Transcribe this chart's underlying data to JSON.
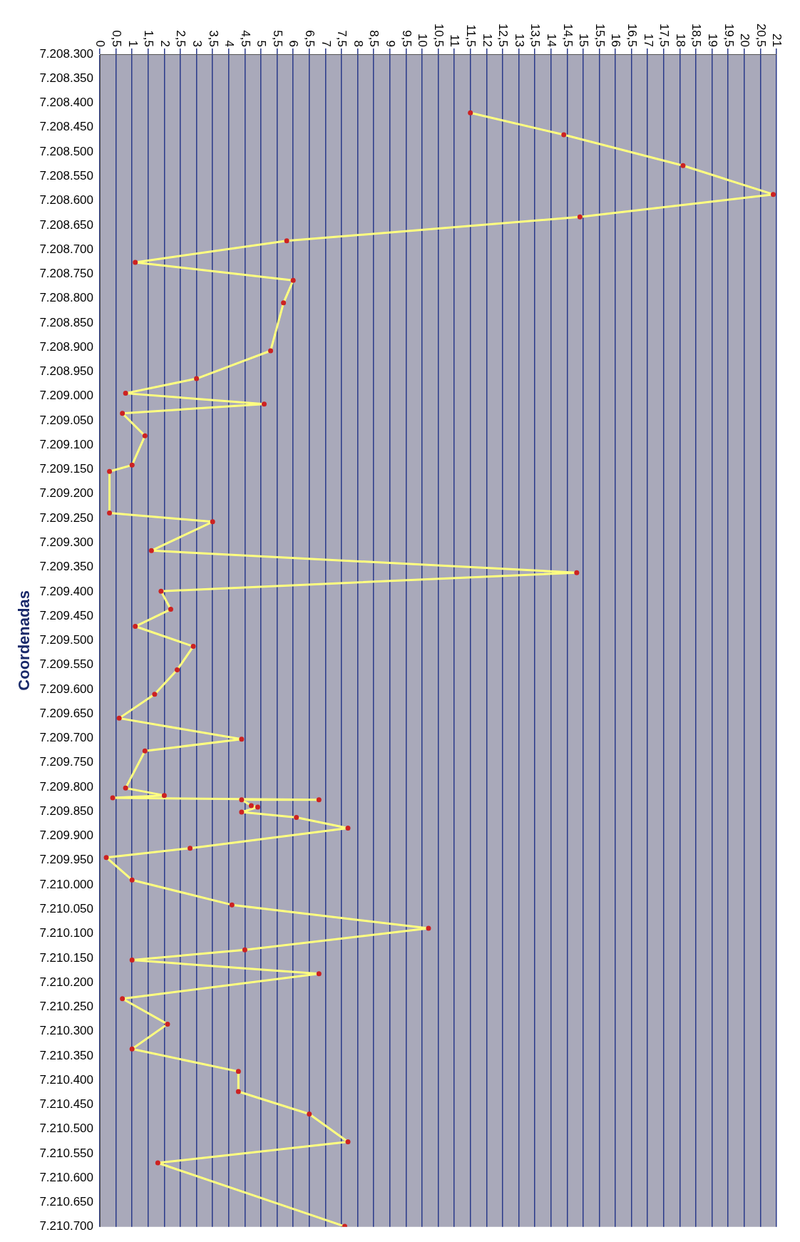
{
  "chart_data": {
    "type": "line",
    "orientation": "horizontal",
    "ylabel": "Coordenadas",
    "x": [
      7208420,
      7208465,
      7208528,
      7208587,
      7208633,
      7208682,
      7208726,
      7208763,
      7208809,
      7208907,
      7208964,
      7208994,
      7209016,
      7209035,
      7209081,
      7209141,
      7209154,
      7209239,
      7209257,
      7209316,
      7209361,
      7209399,
      7209436,
      7209471,
      7209512,
      7209560,
      7209610,
      7209659,
      7209702,
      7209726,
      7209802,
      7209817,
      7209822,
      7209826,
      7209826,
      7209838,
      7209841,
      7209851,
      7209862,
      7209884,
      7209925,
      7209944,
      7209990,
      7210041,
      7210089,
      7210133,
      7210154,
      7210182,
      7210233,
      7210285,
      7210336,
      7210382,
      7210423,
      7210469,
      7210526,
      7210569,
      7210699
    ],
    "series": [
      {
        "color": "#ffff80",
        "marker": "none",
        "values": [
          11.5,
          14.4,
          18.1,
          20.9,
          14.9,
          5.8,
          1.1,
          6.0,
          5.7,
          5.3,
          3.0,
          0.8,
          5.1,
          0.7,
          1.4,
          1.0,
          0.3,
          0.3,
          3.5,
          1.6,
          14.8,
          1.9,
          2.2,
          1.1,
          2.9,
          2.4,
          1.7,
          0.6,
          4.4,
          1.4,
          0.8,
          2.0,
          0.4,
          6.8,
          4.4,
          4.7,
          4.9,
          4.4,
          6.1,
          7.7,
          2.8,
          0.2,
          1.0,
          4.1,
          10.2,
          4.5,
          1.0,
          6.8,
          0.7,
          2.1,
          1.0,
          4.3,
          4.3,
          6.5,
          7.7,
          1.8,
          7.6
        ]
      },
      {
        "type": "scatter",
        "color": "#cc2222",
        "marker": "circle",
        "values": [
          11.5,
          14.4,
          18.1,
          20.9,
          14.9,
          5.8,
          1.1,
          6.0,
          5.7,
          5.3,
          3.0,
          0.8,
          5.1,
          0.7,
          1.4,
          1.0,
          0.3,
          0.3,
          3.5,
          1.6,
          14.8,
          1.9,
          2.2,
          1.1,
          2.9,
          2.4,
          1.7,
          0.6,
          4.4,
          1.4,
          0.8,
          2.0,
          0.4,
          6.8,
          4.4,
          4.7,
          4.9,
          4.4,
          6.1,
          7.7,
          2.8,
          0.2,
          1.0,
          4.1,
          10.2,
          4.5,
          1.0,
          6.8,
          0.7,
          2.1,
          1.0,
          4.3,
          4.3,
          6.5,
          7.7,
          1.8,
          7.6
        ]
      }
    ],
    "line_style": "solid",
    "grid": "x",
    "legend": false,
    "xlim": [
      0,
      21
    ],
    "xticks": [
      0,
      {
        "value": 0.5,
        "label": "0,5"
      },
      1,
      {
        "value": 1.5,
        "label": "1,5"
      },
      2,
      {
        "value": 2.5,
        "label": "2,5"
      },
      3,
      {
        "value": 3.5,
        "label": "3,5"
      },
      4,
      {
        "value": 4.5,
        "label": "4,5"
      },
      5,
      {
        "value": 5.5,
        "label": "5,5"
      },
      6,
      {
        "value": 6.5,
        "label": "6,5"
      },
      7,
      {
        "value": 7.5,
        "label": "7,5"
      },
      8,
      {
        "value": 8.5,
        "label": "8,5"
      },
      9,
      {
        "value": 9.5,
        "label": "9,5"
      },
      10,
      {
        "value": 10.5,
        "label": "10,5"
      },
      11,
      {
        "value": 11.5,
        "label": "11,5"
      },
      12,
      {
        "value": 12.5,
        "label": "12,5"
      },
      13,
      {
        "value": 13.5,
        "label": "13,5"
      },
      14,
      {
        "value": 14.5,
        "label": "14,5"
      },
      15,
      {
        "value": 15.5,
        "label": "15,5"
      },
      16,
      {
        "value": 16.5,
        "label": "16,5"
      },
      17,
      {
        "value": 17.5,
        "label": "17,5"
      },
      18,
      {
        "value": 18.5,
        "label": "18,5"
      },
      19,
      {
        "value": 19.5,
        "label": "19,5"
      },
      20,
      {
        "value": 20.5,
        "label": "20,5"
      },
      21
    ],
    "ylim": [
      7210700,
      7208300
    ],
    "yticks": [
      {
        "value": 7208300,
        "label": "7.208.300"
      },
      {
        "value": 7208350,
        "label": "7.208.350"
      },
      {
        "value": 7208400,
        "label": "7.208.400"
      },
      {
        "value": 7208450,
        "label": "7.208.450"
      },
      {
        "value": 7208500,
        "label": "7.208.500"
      },
      {
        "value": 7208550,
        "label": "7.208.550"
      },
      {
        "value": 7208600,
        "label": "7.208.600"
      },
      {
        "value": 7208650,
        "label": "7.208.650"
      },
      {
        "value": 7208700,
        "label": "7.208.700"
      },
      {
        "value": 7208750,
        "label": "7.208.750"
      },
      {
        "value": 7208800,
        "label": "7.208.800"
      },
      {
        "value": 7208850,
        "label": "7.208.850"
      },
      {
        "value": 7208900,
        "label": "7.208.900"
      },
      {
        "value": 7208950,
        "label": "7.208.950"
      },
      {
        "value": 7209000,
        "label": "7.209.000"
      },
      {
        "value": 7209050,
        "label": "7.209.050"
      },
      {
        "value": 7209100,
        "label": "7.209.100"
      },
      {
        "value": 7209150,
        "label": "7.209.150"
      },
      {
        "value": 7209200,
        "label": "7.209.200"
      },
      {
        "value": 7209250,
        "label": "7.209.250"
      },
      {
        "value": 7209300,
        "label": "7.209.300"
      },
      {
        "value": 7209350,
        "label": "7.209.350"
      },
      {
        "value": 7209400,
        "label": "7.209.400"
      },
      {
        "value": 7209450,
        "label": "7.209.450"
      },
      {
        "value": 7209500,
        "label": "7.209.500"
      },
      {
        "value": 7209550,
        "label": "7.209.550"
      },
      {
        "value": 7209600,
        "label": "7.209.600"
      },
      {
        "value": 7209650,
        "label": "7.209.650"
      },
      {
        "value": 7209700,
        "label": "7.209.700"
      },
      {
        "value": 7209750,
        "label": "7.209.750"
      },
      {
        "value": 7209800,
        "label": "7.209.800"
      },
      {
        "value": 7209850,
        "label": "7.209.850"
      },
      {
        "value": 7209900,
        "label": "7.209.900"
      },
      {
        "value": 7209950,
        "label": "7.209.950"
      },
      {
        "value": 7210000,
        "label": "7.210.000"
      },
      {
        "value": 7210050,
        "label": "7.210.050"
      },
      {
        "value": 7210100,
        "label": "7.210.100"
      },
      {
        "value": 7210150,
        "label": "7.210.150"
      },
      {
        "value": 7210200,
        "label": "7.210.200"
      },
      {
        "value": 7210250,
        "label": "7.210.250"
      },
      {
        "value": 7210300,
        "label": "7.210.300"
      },
      {
        "value": 7210350,
        "label": "7.210.350"
      },
      {
        "value": 7210400,
        "label": "7.210.400"
      },
      {
        "value": 7210450,
        "label": "7.210.450"
      },
      {
        "value": 7210500,
        "label": "7.210.500"
      },
      {
        "value": 7210550,
        "label": "7.210.550"
      },
      {
        "value": 7210600,
        "label": "7.210.600"
      },
      {
        "value": 7210650,
        "label": "7.210.650"
      },
      {
        "value": 7210700,
        "label": "7.210.700"
      }
    ]
  }
}
